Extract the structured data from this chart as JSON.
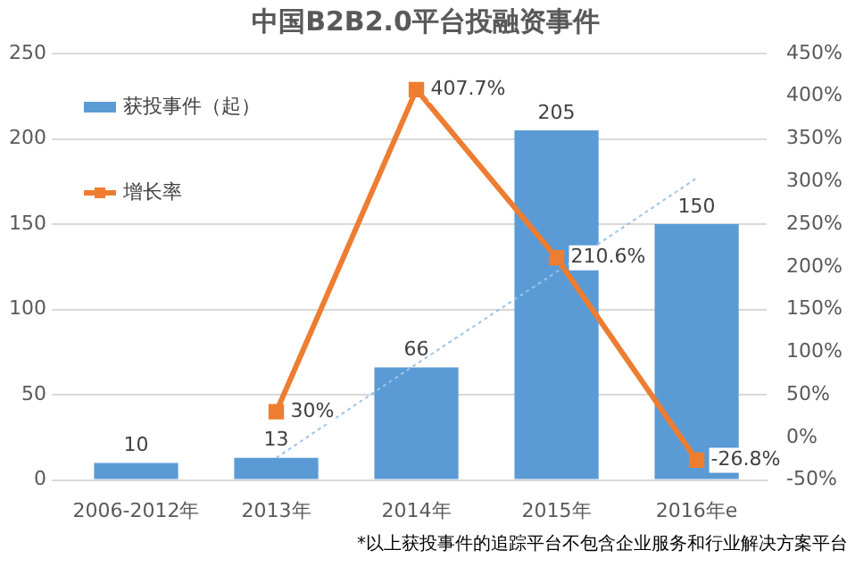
{
  "chart_data": {
    "type": "bar",
    "title": "中国B2B2.0平台投融资事件",
    "categories": [
      "2006-2012年",
      "2013年",
      "2014年",
      "2015年",
      "2016年e"
    ],
    "series": [
      {
        "name": "获投事件（起）",
        "color": "#5b9bd5",
        "values": [
          10,
          13,
          66,
          205,
          150
        ],
        "value_labels": [
          "10",
          "13",
          "66",
          "205",
          "150"
        ]
      },
      {
        "name": "增长率",
        "type": "line",
        "axis": "y2",
        "color": "#ed7d31",
        "values": [
          null,
          30,
          407.7,
          210.6,
          -26.8
        ],
        "value_labels": [
          null,
          "30%",
          "407.7%",
          "210.6%",
          "-26.8%"
        ],
        "marker": "square"
      },
      {
        "type": "line",
        "color": "#9dc3e6",
        "line_style": "dotted",
        "values": [
          null,
          13,
          68,
          122,
          177
        ],
        "marker": "none"
      }
    ],
    "ylim": [
      0,
      250
    ],
    "yticks": [
      0,
      50,
      100,
      150,
      200,
      250
    ],
    "y2lim": [
      -50,
      450
    ],
    "y2ticks": [
      {
        "value": -50,
        "label": "-50%"
      },
      {
        "value": 0,
        "label": "0%"
      },
      {
        "value": 50,
        "label": "50%"
      },
      {
        "value": 100,
        "label": "100%"
      },
      {
        "value": 150,
        "label": "150%"
      },
      {
        "value": 200,
        "label": "200%"
      },
      {
        "value": 250,
        "label": "250%"
      },
      {
        "value": 300,
        "label": "300%"
      },
      {
        "value": 350,
        "label": "350%"
      },
      {
        "value": 400,
        "label": "400%"
      },
      {
        "value": 450,
        "label": "450%"
      }
    ],
    "grid": "y",
    "legend": "top left",
    "annotations": [
      "*以上获投事件的追踪平台不包含企业服务和行业解决方案平台"
    ]
  }
}
